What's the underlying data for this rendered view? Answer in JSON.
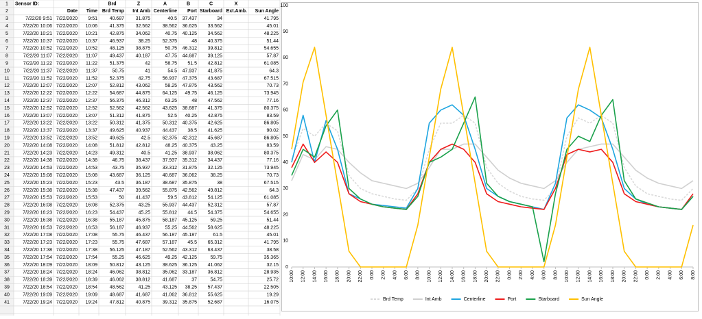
{
  "sheet": {
    "row_numbers": [
      1,
      2,
      3,
      4,
      5,
      6,
      7,
      8,
      9,
      10,
      11,
      12,
      13,
      14,
      15,
      16,
      17,
      18,
      19,
      20,
      21,
      22,
      23,
      24,
      25,
      26,
      27,
      28,
      29,
      30,
      31,
      32,
      33,
      34,
      35,
      36,
      37,
      38,
      39,
      40,
      41
    ],
    "row1": [
      "Sensor ID:",
      null,
      null,
      "Brd",
      "Z",
      "A",
      "B",
      "C",
      "X",
      null
    ],
    "header": [
      null,
      "Date",
      "Time",
      "Brd Temp",
      "Int Amb",
      "Centerline",
      "Port",
      "Starboard",
      "Ext.Amb.",
      "Sun Angle"
    ],
    "rows": [
      [
        "7/22/20 9:51",
        "7/22/2020",
        "9:51",
        40.687,
        31.875,
        40.5,
        37.437,
        34,
        null,
        41.795
      ],
      [
        "7/22/20 10:06",
        "7/22/2020",
        "10:06",
        41.375,
        32.562,
        38.562,
        36.625,
        33.562,
        null,
        45.01
      ],
      [
        "7/22/20 10:21",
        "7/22/2020",
        "10:21",
        42.875,
        34.062,
        40.75,
        40.125,
        34.562,
        null,
        48.225
      ],
      [
        "7/22/20 10:37",
        "7/22/2020",
        "10:37",
        46.937,
        38.25,
        52.375,
        48,
        40.375,
        null,
        51.44
      ],
      [
        "7/22/20 10:52",
        "7/22/2020",
        "10:52",
        48.125,
        38.875,
        50.75,
        46.312,
        39.812,
        null,
        54.655
      ],
      [
        "7/22/20 11:07",
        "7/22/2020",
        "11:07",
        49.437,
        40.187,
        47.75,
        44.687,
        39.125,
        null,
        57.87
      ],
      [
        "7/22/20 11:22",
        "7/22/2020",
        "11:22",
        51.375,
        42,
        58.75,
        51.5,
        42.812,
        null,
        61.085
      ],
      [
        "7/22/20 11:37",
        "7/22/2020",
        "11:37",
        50.75,
        41,
        54.5,
        47.937,
        41.875,
        null,
        64.3
      ],
      [
        "7/22/20 11:52",
        "7/22/2020",
        "11:52",
        52.375,
        42.75,
        56.937,
        47.375,
        43.687,
        null,
        67.515
      ],
      [
        "7/22/20 12:07",
        "7/22/2020",
        "12:07",
        52.812,
        43.062,
        58.25,
        47.875,
        43.562,
        null,
        70.73
      ],
      [
        "7/22/20 12:22",
        "7/22/2020",
        "12:22",
        54.687,
        44.875,
        64.125,
        49.75,
        46.125,
        null,
        73.945
      ],
      [
        "7/22/20 12:37",
        "7/22/2020",
        "12:37",
        56.375,
        46.312,
        63.25,
        48,
        47.562,
        null,
        77.16
      ],
      [
        "7/22/20 12:52",
        "7/22/2020",
        "12:52",
        52.562,
        42.562,
        43.625,
        38.687,
        41.375,
        null,
        80.375
      ],
      [
        "7/22/20 13:07",
        "7/22/2020",
        "13:07",
        51.312,
        41.875,
        52.5,
        40.25,
        42.875,
        null,
        83.59
      ],
      [
        "7/22/20 13:22",
        "7/22/2020",
        "13:22",
        50.312,
        41.375,
        50.312,
        40.375,
        42.625,
        null,
        86.805
      ],
      [
        "7/22/20 13:37",
        "7/22/2020",
        "13:37",
        49.625,
        40.937,
        44.437,
        38.5,
        41.625,
        null,
        90.02
      ],
      [
        "7/22/20 13:52",
        "7/22/2020",
        "13:52",
        49.625,
        42.5,
        62.375,
        42.312,
        45.687,
        null,
        86.805
      ],
      [
        "7/22/20 14:08",
        "7/22/2020",
        "14:08",
        51.812,
        42.812,
        48.25,
        40.375,
        43.25,
        null,
        83.59
      ],
      [
        "7/22/20 14:23",
        "7/22/2020",
        "14:23",
        49.312,
        40.5,
        41.25,
        38.937,
        38.062,
        null,
        80.375
      ],
      [
        "7/22/20 14:38",
        "7/22/2020",
        "14:38",
        46.75,
        38.437,
        37.937,
        35.312,
        34.437,
        null,
        77.16
      ],
      [
        "7/22/20 14:53",
        "7/22/2020",
        "14:53",
        43.75,
        35.937,
        33.312,
        31.875,
        32.125,
        null,
        73.945
      ],
      [
        "7/22/20 15:08",
        "7/22/2020",
        "15:08",
        43.687,
        36.125,
        40.687,
        36.062,
        38.25,
        null,
        70.73
      ],
      [
        "7/22/20 15:23",
        "7/22/2020",
        "15:23",
        43.5,
        36.187,
        38.687,
        35.875,
        38,
        null,
        67.515
      ],
      [
        "7/22/20 15:38",
        "7/22/2020",
        "15:38",
        47.437,
        39.562,
        55.875,
        42.562,
        49.812,
        null,
        64.3
      ],
      [
        "7/22/20 15:53",
        "7/22/2020",
        "15:53",
        50,
        41.437,
        59.5,
        43.812,
        54.125,
        null,
        61.085
      ],
      [
        "7/22/20 16:08",
        "7/22/2020",
        "16:08",
        52.375,
        43.25,
        55.937,
        44.437,
        52.312,
        null,
        57.87
      ],
      [
        "7/22/20 16:23",
        "7/22/2020",
        "16:23",
        54.437,
        45.25,
        55.812,
        44.5,
        54.375,
        null,
        54.655
      ],
      [
        "7/22/20 16:38",
        "7/22/2020",
        "16:38",
        55.187,
        45.875,
        58.187,
        45.125,
        59.25,
        null,
        51.44
      ],
      [
        "7/22/20 16:53",
        "7/22/2020",
        "16:53",
        56.187,
        46.937,
        55.25,
        44.562,
        58.625,
        null,
        48.225
      ],
      [
        "7/22/20 17:08",
        "7/22/2020",
        "17:08",
        55.75,
        46.437,
        56.187,
        45.187,
        61.5,
        null,
        45.01
      ],
      [
        "7/22/20 17:23",
        "7/22/2020",
        "17:23",
        55.75,
        47.687,
        57.187,
        45.5,
        65.312,
        null,
        41.795
      ],
      [
        "7/22/20 17:38",
        "7/22/2020",
        "17:38",
        56.125,
        47.187,
        52.562,
        43.312,
        63.437,
        null,
        38.58
      ],
      [
        "7/22/20 17:54",
        "7/22/2020",
        "17:54",
        55.25,
        46.625,
        49.25,
        42.125,
        59.75,
        null,
        35.365
      ],
      [
        "7/22/20 18:09",
        "7/22/2020",
        "18:09",
        50.812,
        43.125,
        38.625,
        36.125,
        41.062,
        null,
        32.15
      ],
      [
        "7/22/20 18:24",
        "7/22/2020",
        "18:24",
        46.062,
        38.812,
        35.062,
        33.187,
        36.812,
        null,
        28.935
      ],
      [
        "7/22/20 18:39",
        "7/22/2020",
        "18:39",
        46.062,
        38.812,
        41.687,
        37,
        54.75,
        null,
        25.72
      ],
      [
        "7/22/20 18:54",
        "7/22/2020",
        "18:54",
        48.562,
        41.25,
        43.125,
        38.25,
        57.437,
        null,
        22.505
      ],
      [
        "7/22/20 19:09",
        "7/22/2020",
        "19:09",
        48.687,
        41.687,
        41.062,
        36.812,
        55.625,
        null,
        19.29
      ],
      [
        "7/22/20 19:24",
        "7/22/2020",
        "19:24",
        47.812,
        40.875,
        39.312,
        35.875,
        52.687,
        null,
        16.075
      ]
    ]
  },
  "chart_data": {
    "type": "line",
    "categories": [
      "10:00",
      "12:00",
      "14:00",
      "16:00",
      "18:00",
      "20:00",
      "22:00",
      "0:00",
      "2:00",
      "4:00",
      "6:00",
      "8:00",
      "10:00",
      "12:00",
      "14:00",
      "16:00",
      "18:00",
      "20:00",
      "22:00",
      "0:00",
      "2:00",
      "4:00",
      "6:00",
      "8:00",
      "10:00",
      "12:00",
      "14:00",
      "16:00",
      "18:00",
      "20:00",
      "22:00",
      "0:00",
      "2:00",
      "4:00",
      "6:00",
      "8:00"
    ],
    "ylim": [
      0,
      100
    ],
    "yticks": [
      0,
      10,
      20,
      30,
      40,
      50,
      60,
      70,
      80,
      90,
      100
    ],
    "grid": false,
    "legend": "bottom",
    "series": [
      {
        "name": "Brd Temp",
        "color": "#d9d9d9",
        "dashed": true,
        "values": [
          41,
          53,
          50,
          55,
          52,
          35,
          30,
          28,
          27,
          26,
          25.5,
          30,
          45,
          55,
          55,
          58,
          55,
          38,
          32,
          29,
          27,
          26,
          25.5,
          30,
          50,
          57,
          55,
          58,
          55,
          38,
          31,
          28,
          27,
          26,
          25.5,
          30
        ]
      },
      {
        "name": "Int Amb",
        "color": "#d0d0d0",
        "values": [
          33,
          43,
          41,
          46,
          45,
          40,
          36,
          33,
          32,
          31,
          30,
          32,
          38,
          45,
          45,
          47,
          47,
          42,
          37,
          34,
          32,
          31,
          30,
          33,
          40,
          45,
          46,
          47,
          47,
          42,
          37,
          34,
          32,
          31,
          30,
          33
        ]
      },
      {
        "name": "Centerline",
        "color": "#1ea5e0",
        "values": [
          40,
          58,
          40,
          56,
          45,
          28,
          26,
          24,
          23.5,
          23,
          22.5,
          30,
          55,
          60,
          62,
          58,
          45,
          30,
          27,
          25,
          24,
          23,
          22,
          32,
          57,
          62,
          60,
          57,
          45,
          30,
          26,
          24,
          23,
          22.5,
          22,
          27
        ]
      },
      {
        "name": "Port",
        "color": "#ee1c1c",
        "values": [
          38,
          47,
          40,
          44,
          40,
          28,
          25,
          24,
          23,
          22.5,
          22,
          28,
          40,
          45,
          47,
          45,
          40,
          28,
          25,
          24,
          23,
          22.5,
          22,
          30,
          43,
          45,
          44,
          45,
          40,
          28,
          25,
          24,
          23,
          22.5,
          22,
          28
        ]
      },
      {
        "name": "Starboard",
        "color": "#1aa14b",
        "values": [
          35,
          45,
          42,
          54,
          60,
          30,
          26,
          24,
          23,
          22.5,
          22,
          27,
          40,
          42,
          45,
          55,
          65,
          32,
          27,
          25,
          24,
          23,
          2,
          28,
          45,
          50,
          48,
          58,
          64,
          33,
          26,
          24.5,
          23,
          22.5,
          22,
          27
        ]
      },
      {
        "name": "Sun Angle",
        "color": "#ffc000",
        "values": [
          45,
          70.7,
          84,
          58,
          32,
          6,
          0,
          0,
          0,
          0,
          0,
          16,
          42,
          68,
          84,
          58,
          32,
          6,
          0,
          0,
          0,
          0,
          0,
          16,
          42,
          68,
          84,
          58,
          32,
          6,
          0,
          0,
          0,
          0,
          0,
          16
        ]
      }
    ]
  }
}
